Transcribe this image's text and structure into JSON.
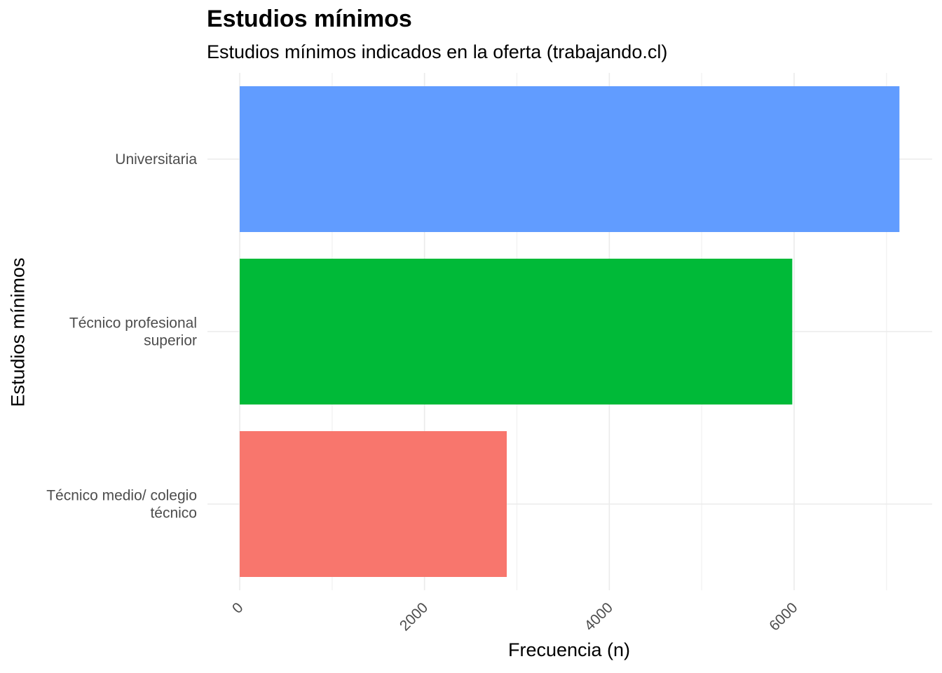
{
  "chart_data": {
    "type": "bar",
    "orientation": "horizontal",
    "title": "Estudios mínimos",
    "subtitle": "Estudios mínimos indicados en la oferta (trabajando.cl)",
    "xlabel": "Frecuencia (n)",
    "ylabel": "Estudios mínimos",
    "categories": [
      "Universitaria",
      "Técnico profesional superior",
      "Técnico medio/ colegio técnico"
    ],
    "category_label_lines": [
      [
        "Universitaria"
      ],
      [
        "Técnico profesional",
        "superior"
      ],
      [
        "Técnico medio/ colegio",
        "técnico"
      ]
    ],
    "values": [
      7140,
      5980,
      2890
    ],
    "colors": [
      "#619CFF",
      "#00BA38",
      "#F8766D"
    ],
    "xlim": [
      0,
      7500
    ],
    "xticks": [
      0,
      2000,
      4000,
      6000
    ],
    "xtick_rotation_deg": -45,
    "grid": true,
    "legend": "none"
  }
}
